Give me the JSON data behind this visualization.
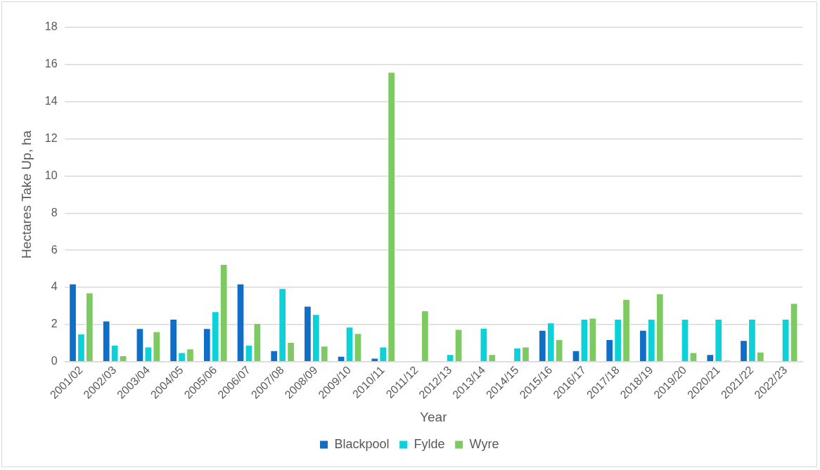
{
  "chart_data": {
    "type": "bar",
    "xlabel": "Year",
    "ylabel": "Hectares Take Up, ha",
    "categories": [
      "2001/02",
      "2002/03",
      "2003/04",
      "2004/05",
      "2005/06",
      "2006/07",
      "2007/08",
      "2008/09",
      "2009/10",
      "2010/11",
      "2011/12",
      "2012/13",
      "2013/14",
      "2014/15",
      "2015/16",
      "2016/17",
      "2017/18",
      "2018/19",
      "2019/20",
      "2020/21",
      "2021/22",
      "2022/23"
    ],
    "series": [
      {
        "name": "Blackpool",
        "color": "#0f6fc6",
        "values": [
          4.2,
          2.2,
          1.8,
          2.3,
          1.8,
          4.2,
          0.6,
          3.0,
          0.3,
          0.2,
          null,
          null,
          null,
          null,
          1.7,
          0.6,
          1.2,
          1.7,
          null,
          0.4,
          1.15,
          null
        ]
      },
      {
        "name": "Fylde",
        "color": "#0dd1d9",
        "values": [
          1.5,
          0.9,
          0.8,
          0.5,
          2.7,
          0.9,
          3.95,
          2.55,
          1.87,
          0.8,
          null,
          0.4,
          1.82,
          0.75,
          2.1,
          2.3,
          2.3,
          2.3,
          2.3,
          2.3,
          2.3,
          2.3
        ]
      },
      {
        "name": "Wyre",
        "color": "#7dc962",
        "values": [
          3.72,
          0.33,
          1.63,
          0.7,
          5.25,
          2.07,
          1.05,
          0.85,
          1.53,
          15.6,
          2.75,
          1.75,
          0.4,
          0.8,
          1.2,
          2.35,
          3.37,
          3.67,
          0.5,
          0.07,
          0.53,
          3.15
        ]
      }
    ],
    "ylim": [
      0,
      18
    ],
    "yticks": [
      0,
      2,
      4,
      6,
      8,
      10,
      12,
      14,
      16,
      18
    ],
    "grid": "y",
    "legend": "bottom"
  }
}
